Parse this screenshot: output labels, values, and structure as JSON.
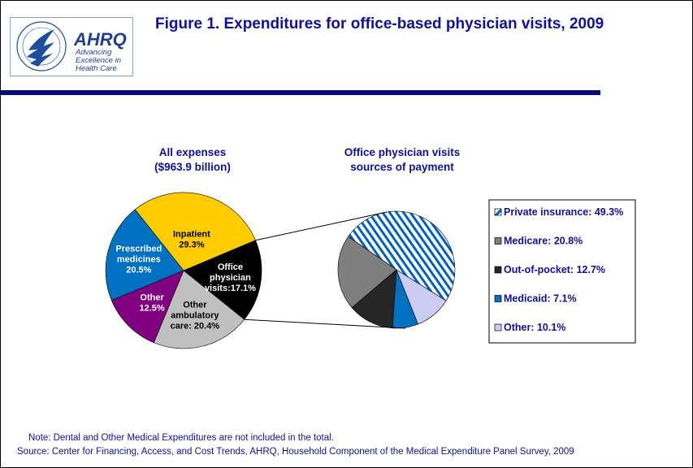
{
  "header": {
    "title": "Figure 1. Expenditures for office-based physician visits, 2009",
    "logo": {
      "name": "AHRQ",
      "tagline": [
        "Advancing",
        "Excellence in",
        "Health Care"
      ],
      "seal_text": "DEPARTMENT OF HEALTH & HUMAN SERVICES USA"
    }
  },
  "chart_data": [
    {
      "type": "pie",
      "title": [
        "All expenses",
        "($963.9 billion)"
      ],
      "slices": [
        {
          "name": "Inpatient",
          "value": 29.3,
          "label": [
            "Inpatient",
            "29.3%"
          ],
          "color": "#ffcc00",
          "text_color": "#000000"
        },
        {
          "name": "Office physician visits",
          "value": 17.1,
          "label": [
            "Office",
            "physician",
            "visits:17.1%"
          ],
          "color": "#000000",
          "text_color": "#ffffff"
        },
        {
          "name": "Other ambulatory care",
          "value": 20.4,
          "label": [
            "Other",
            "ambulatory",
            "care: 20.4%"
          ],
          "color": "#c0c0c0",
          "text_color": "#000000"
        },
        {
          "name": "Other",
          "value": 12.5,
          "label": [
            "Other",
            "12.5%"
          ],
          "color": "#800080",
          "text_color": "#ffffff"
        },
        {
          "name": "Prescribed medicines",
          "value": 20.5,
          "label": [
            "Prescribed",
            "medicines",
            "20.5%"
          ],
          "color": "#0070c0",
          "text_color": "#ffffff"
        }
      ]
    },
    {
      "type": "pie",
      "title": [
        "Office physician visits",
        "sources of payment"
      ],
      "slices": [
        {
          "name": "Private insurance",
          "value": 49.3,
          "color": "#0060c0",
          "pattern": "diagonal-stripes"
        },
        {
          "name": "Medicare",
          "value": 20.8,
          "color": "#7f7f7f"
        },
        {
          "name": "Out-of-pocket",
          "value": 12.7,
          "color": "#262626"
        },
        {
          "name": "Medicaid",
          "value": 7.1,
          "color": "#0070c0"
        },
        {
          "name": "Other",
          "value": 10.1,
          "color": "#ccccf2"
        }
      ],
      "legend": {
        "position": "right",
        "entries": [
          "Private insurance: 49.3%",
          "Medicare: 20.8%",
          "Out-of-pocket: 12.7%",
          "Medicaid: 7.1%",
          "Other: 10.1%"
        ]
      }
    }
  ],
  "footer": {
    "note": "Note: Dental and Other Medical Expenditures are not included in the total.",
    "source": "Source: Center for Financing, Access, and Cost Trends, AHRQ, Household Component of the Medical Expenditure Panel Survey,  2009"
  }
}
